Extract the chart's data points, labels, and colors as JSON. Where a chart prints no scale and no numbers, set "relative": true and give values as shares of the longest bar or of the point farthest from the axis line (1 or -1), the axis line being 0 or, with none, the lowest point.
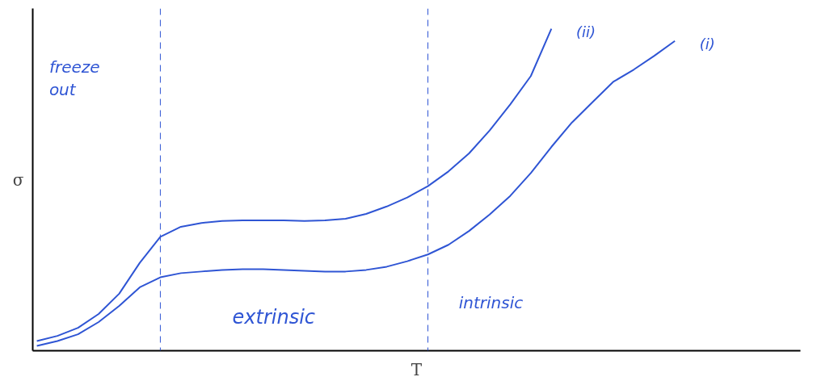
{
  "chart_data": {
    "type": "line",
    "relative": true,
    "xlabel": "T",
    "ylabel": "σ",
    "categories": [
      null,
      null,
      null,
      null,
      null,
      null,
      null,
      null,
      null,
      null,
      null,
      null,
      null,
      null,
      null,
      null,
      null,
      null,
      null,
      null,
      null,
      null,
      null,
      null,
      null,
      null,
      null,
      null,
      null,
      null,
      null,
      null
    ],
    "series": [
      {
        "name": "(ii)",
        "color": "#2f55d4",
        "values": [
          0.03,
          0.046,
          0.071,
          0.114,
          0.177,
          0.273,
          0.354,
          0.385,
          0.397,
          0.403,
          0.405,
          0.405,
          0.405,
          0.403,
          0.405,
          0.41,
          0.425,
          0.448,
          0.476,
          0.511,
          0.557,
          0.613,
          0.684,
          0.765,
          0.853,
          1,
          null,
          null,
          null,
          null,
          null,
          null
        ]
      },
      {
        "name": "(i)",
        "color": "#2f55d4",
        "values": [
          0.015,
          0.03,
          0.051,
          0.089,
          0.139,
          0.197,
          0.228,
          0.241,
          0.246,
          0.251,
          0.253,
          0.253,
          0.251,
          0.248,
          0.246,
          0.246,
          0.251,
          0.261,
          0.278,
          0.299,
          0.329,
          0.372,
          0.423,
          0.481,
          0.552,
          0.633,
          0.709,
          0.772,
          0.835,
          0.873,
          0.916,
          0.962
        ]
      }
    ],
    "annotations": [
      "freeze out",
      "extrinsic",
      "intrinsic"
    ],
    "grid": false,
    "marker": "none",
    "line_style": "solid"
  }
}
